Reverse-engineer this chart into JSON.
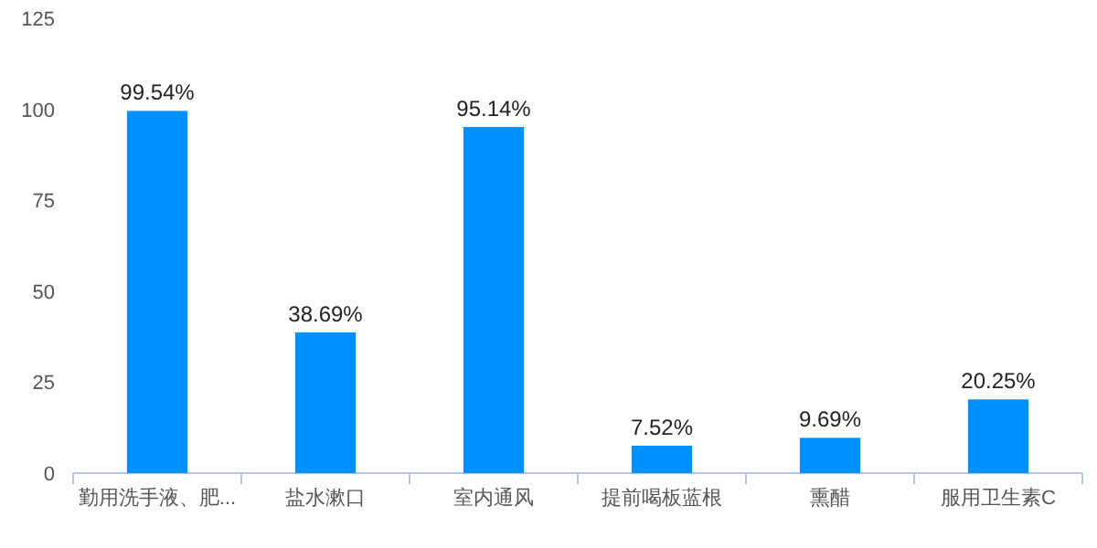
{
  "chart_data": {
    "type": "bar",
    "categories": [
      "勤用洗手液、肥...",
      "盐水漱口",
      "室内通风",
      "提前喝板蓝根",
      "熏醋",
      "服用卫生素C"
    ],
    "values": [
      99.54,
      38.69,
      95.14,
      7.52,
      9.69,
      20.25
    ],
    "value_labels": [
      "99.54%",
      "38.69%",
      "95.14%",
      "7.52%",
      "9.69%",
      "20.25%"
    ],
    "color": "#0090ff",
    "ylim": [
      0,
      125
    ],
    "yticks": [
      0,
      25,
      50,
      75,
      100,
      125
    ],
    "grid": false
  }
}
